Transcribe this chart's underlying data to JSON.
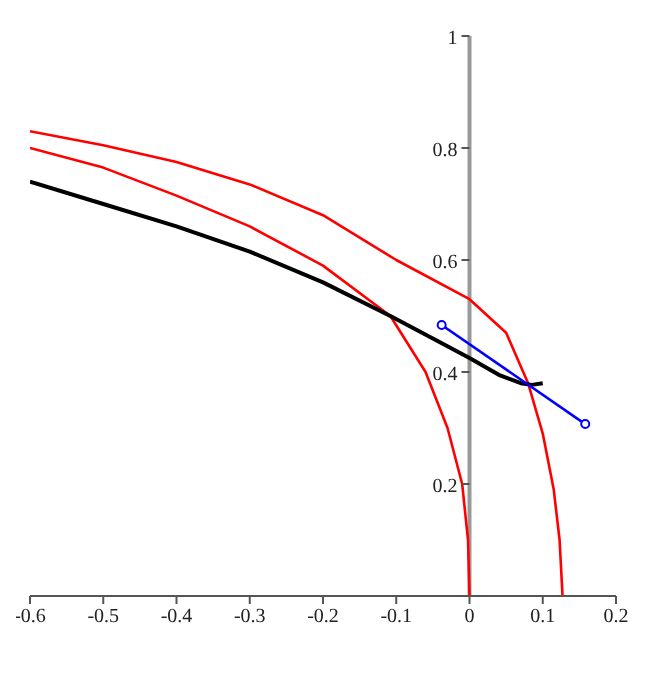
{
  "chart_data": {
    "type": "line",
    "xlim": [
      -0.6,
      0.2
    ],
    "xticks": [
      -0.6,
      -0.5,
      -0.4,
      -0.3,
      -0.2,
      -0.1,
      0,
      0.1,
      0.2
    ],
    "ylim": [
      0,
      1
    ],
    "yticks": [
      0.2,
      0.4,
      0.6,
      0.8,
      1
    ],
    "grid": false,
    "marker": "none",
    "series": [
      {
        "color": "#ff0000",
        "x": [
          -0.6,
          -0.5,
          -0.4,
          -0.3,
          -0.2,
          -0.1,
          0,
          0.05,
          0.08,
          0.1,
          0.115,
          0.123,
          0.127
        ],
        "values": [
          0.83,
          0.805,
          0.775,
          0.735,
          0.68,
          0.6,
          0.53,
          0.47,
          0.38,
          0.29,
          0.19,
          0.1,
          0
        ]
      },
      {
        "color": "#ff0000",
        "x": [
          -0.6,
          -0.5,
          -0.4,
          -0.3,
          -0.2,
          -0.108,
          -0.06,
          -0.03,
          -0.01,
          -0.002,
          0
        ],
        "values": [
          0.8,
          0.765,
          0.715,
          0.66,
          0.59,
          0.5,
          0.4,
          0.3,
          0.2,
          0.1,
          0
        ]
      },
      {
        "color": "#000000",
        "x": [
          -0.6,
          -0.5,
          -0.4,
          -0.3,
          -0.2,
          -0.108,
          -0.05,
          0,
          0.04,
          0.07,
          0.085,
          0.1
        ],
        "values": [
          0.74,
          0.7,
          0.66,
          0.615,
          0.56,
          0.5,
          0.46,
          0.425,
          0.395,
          0.38,
          0.377,
          0.38
        ]
      },
      {
        "color": "#0000ff",
        "marker": "circle",
        "x": [
          -0.038,
          0.158
        ],
        "values": [
          0.484,
          0.307
        ]
      }
    ]
  }
}
